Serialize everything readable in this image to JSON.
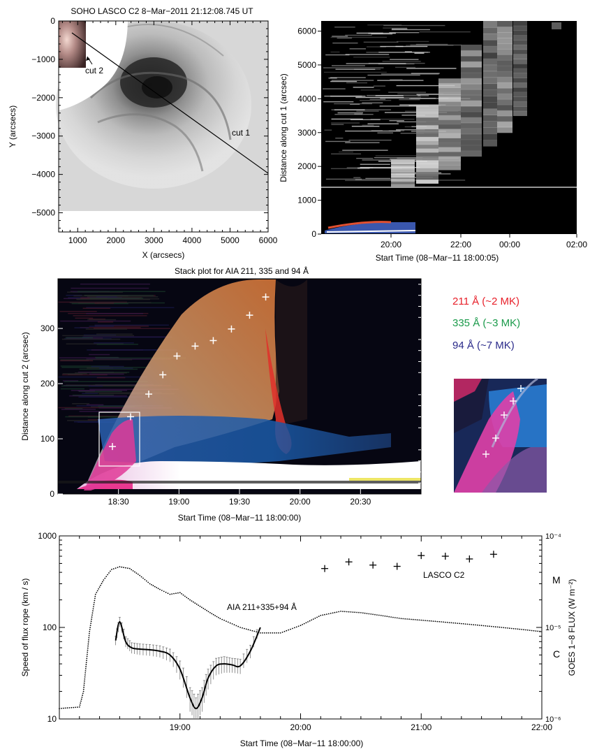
{
  "chart_data": [
    {
      "type": "heatmap",
      "title": "SOHO LASCO C2  8−Mar−2011 21:12:08.745 UT",
      "xlabel": "X (arcsecs)",
      "ylabel": "Y (arcsecs)",
      "xlim": [
        500,
        6000
      ],
      "ylim": [
        -5500,
        0
      ],
      "xticks": [
        "1000",
        "2000",
        "3000",
        "4000",
        "5000",
        "6000"
      ],
      "yticks": [
        "0",
        "−1000",
        "−2000",
        "−3000",
        "−4000",
        "−5000"
      ],
      "annotations": [
        "cut 1",
        "cut 2"
      ]
    },
    {
      "type": "heatmap",
      "xlabel": "Start Time (08−Mar−11 18:00:05)",
      "ylabel": "Distance along cut 1 (arcsec)",
      "ylim": [
        0,
        6300
      ],
      "xticks": [
        "20:00",
        "22:00",
        "00:00",
        "02:00"
      ],
      "yticks": [
        "0",
        "1000",
        "2000",
        "3000",
        "4000",
        "5000",
        "6000"
      ]
    },
    {
      "type": "heatmap",
      "title": "Stack plot for AIA 211, 335 and 94 Å",
      "xlabel": "Start Time (08−Mar−11 18:00:00)",
      "ylabel": "Distance along cut 2 (arcsec)",
      "ylim": [
        0,
        390
      ],
      "xticks": [
        "18:30",
        "19:00",
        "19:30",
        "20:00",
        "20:30"
      ],
      "yticks": [
        "0",
        "100",
        "200",
        "300"
      ],
      "legend": [
        {
          "label": "211 Å (~2 MK)",
          "color": "#e8202a"
        },
        {
          "label": "335 Å (~3 MK)",
          "color": "#1a9a4a"
        },
        {
          "label": "94  Å (~7 MK)",
          "color": "#2a2a8a"
        }
      ],
      "points": [
        {
          "t": "18:27",
          "d": 86
        },
        {
          "t": "18:36",
          "d": 140
        },
        {
          "t": "18:45",
          "d": 181
        },
        {
          "t": "18:52",
          "d": 216
        },
        {
          "t": "18:59",
          "d": 250
        },
        {
          "t": "19:08",
          "d": 268
        },
        {
          "t": "19:17",
          "d": 278
        },
        {
          "t": "19:26",
          "d": 299
        },
        {
          "t": "19:35",
          "d": 324
        },
        {
          "t": "19:43",
          "d": 357
        }
      ]
    },
    {
      "type": "line",
      "xlabel": "Start Time (08−Mar−11 18:00:00)",
      "ylabel": "Speed of flux rope (km / s)",
      "y2label": "GOES 1−8 FLUX (W m⁻²)",
      "yscale": "log",
      "ylim": [
        10,
        1000
      ],
      "xticks": [
        "19:00",
        "20:00",
        "21:00",
        "22:00"
      ],
      "yticks": [
        "10",
        "100",
        "1000"
      ],
      "y2ticks": [
        "10⁻⁶",
        "10⁻⁵",
        "10⁻⁴"
      ],
      "class_labels": [
        "C",
        "M"
      ],
      "series": [
        {
          "name": "AIA 211+335+94 Å",
          "style": "solid",
          "x": [
            "18:28",
            "18:30",
            "18:33",
            "18:36",
            "18:40",
            "18:45",
            "18:50",
            "18:55",
            "19:00",
            "19:05",
            "19:08",
            "19:11",
            "19:14",
            "19:18",
            "19:22",
            "19:26",
            "19:30",
            "19:35",
            "19:40"
          ],
          "y": [
            72,
            115,
            70,
            60,
            58,
            57,
            55,
            50,
            35,
            17,
            13,
            17,
            28,
            38,
            40,
            39,
            38,
            55,
            100
          ],
          "err": [
            8,
            14,
            9,
            8,
            8,
            8,
            8,
            8,
            8,
            5,
            4,
            5,
            7,
            8,
            8,
            7,
            7,
            9,
            10
          ]
        },
        {
          "name": "LASCO C2",
          "style": "plus",
          "x": [
            "20:12",
            "20:24",
            "20:36",
            "20:48",
            "21:00",
            "21:12",
            "21:24",
            "21:36"
          ],
          "y": [
            440,
            520,
            480,
            465,
            610,
            600,
            560,
            630
          ]
        },
        {
          "name": "GOES 1−8",
          "style": "dotted",
          "axis": "right",
          "x": [
            "18:00",
            "18:10",
            "18:12",
            "18:15",
            "18:18",
            "18:22",
            "18:26",
            "18:30",
            "18:35",
            "18:40",
            "18:45",
            "18:50",
            "18:55",
            "19:00",
            "19:05",
            "19:10",
            "19:15",
            "19:20",
            "19:30",
            "19:40",
            "19:50",
            "20:00",
            "20:10",
            "20:20",
            "20:30",
            "20:40",
            "20:50",
            "21:00",
            "21:10",
            "21:20",
            "21:30",
            "21:40",
            "21:50",
            "22:00"
          ],
          "y": [
            1.3e-06,
            1.35e-06,
            2e-06,
            9e-06,
            2.3e-05,
            3.3e-05,
            4.3e-05,
            4.6e-05,
            4.4e-05,
            3.7e-05,
            3e-05,
            2.6e-05,
            2.3e-05,
            2.4e-05,
            2e-05,
            1.7e-05,
            1.45e-05,
            1.25e-05,
            1e-05,
            8.7e-06,
            8.7e-06,
            1.05e-05,
            1.35e-05,
            1.5e-05,
            1.45e-05,
            1.35e-05,
            1.25e-05,
            1.2e-05,
            1.15e-05,
            1.1e-05,
            1.05e-05,
            1e-05,
            9.5e-06,
            9e-06
          ]
        }
      ]
    }
  ]
}
